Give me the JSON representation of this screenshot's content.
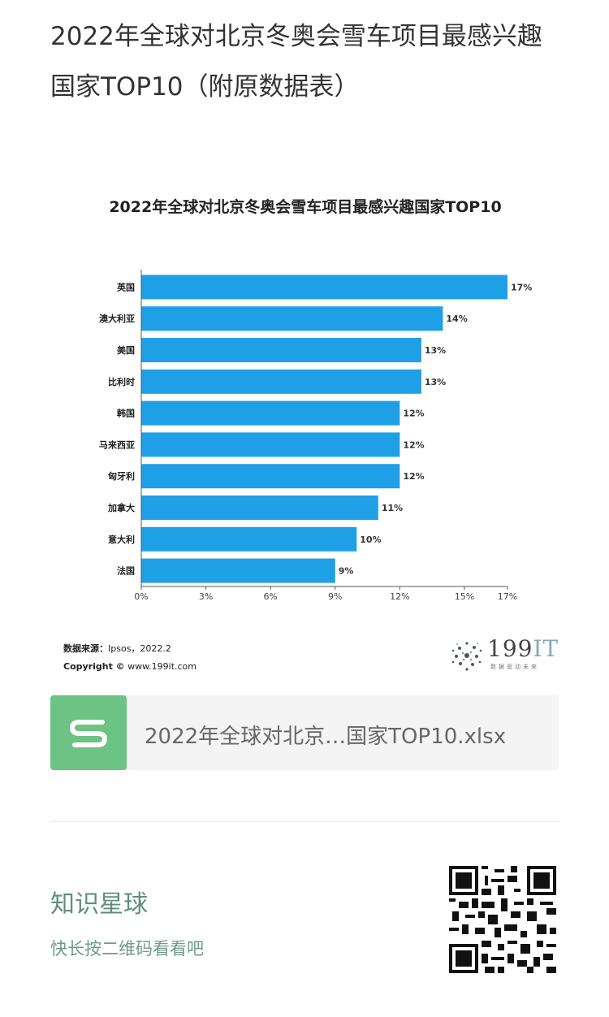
{
  "article": {
    "title": "2022年全球对北京冬奥会雪车项目最感兴趣国家TOP10（附原数据表）"
  },
  "colors": {
    "bar": "#1fa0e6",
    "file_icon_bg": "#6dc383",
    "promo_text": "#5f8e7b"
  },
  "chart_data": {
    "type": "bar",
    "orientation": "horizontal",
    "title": "2022年全球对北京冬奥会雪车项目最感兴趣国家TOP10",
    "categories": [
      "英国",
      "澳大利亚",
      "美国",
      "比利时",
      "韩国",
      "马来西亚",
      "匈牙利",
      "加拿大",
      "意大利",
      "法国"
    ],
    "values": [
      17,
      14,
      13,
      13,
      12,
      12,
      12,
      11,
      10,
      9
    ],
    "value_labels": [
      "17%",
      "14%",
      "13%",
      "13%",
      "12%",
      "12%",
      "12%",
      "11%",
      "10%",
      "9%"
    ],
    "x_ticks": [
      "0%",
      "3%",
      "6%",
      "9%",
      "12%",
      "15%",
      "17%"
    ],
    "x_tick_values": [
      0,
      3,
      6,
      9,
      12,
      15,
      17
    ],
    "xlim": [
      0,
      17
    ],
    "xlabel": "",
    "ylabel": "",
    "grid": false,
    "legend": "none"
  },
  "source": {
    "label": "数据来源：",
    "value": "Ipsos，2022.2",
    "copyright_label": "Copyright ©",
    "copyright_value": "www.199it.com"
  },
  "brand": {
    "name_num": "199",
    "name_it": "IT",
    "tagline": "数据驱动未来",
    "icon": "dandelion-logo-icon"
  },
  "attachment": {
    "icon": "spreadsheet-s-icon",
    "filename": "2022年全球对北京…国家TOP10.xlsx"
  },
  "promo": {
    "title": "知识星球",
    "subtitle": "快长按二维码看看吧",
    "qr_icon": "qr-code-icon"
  }
}
